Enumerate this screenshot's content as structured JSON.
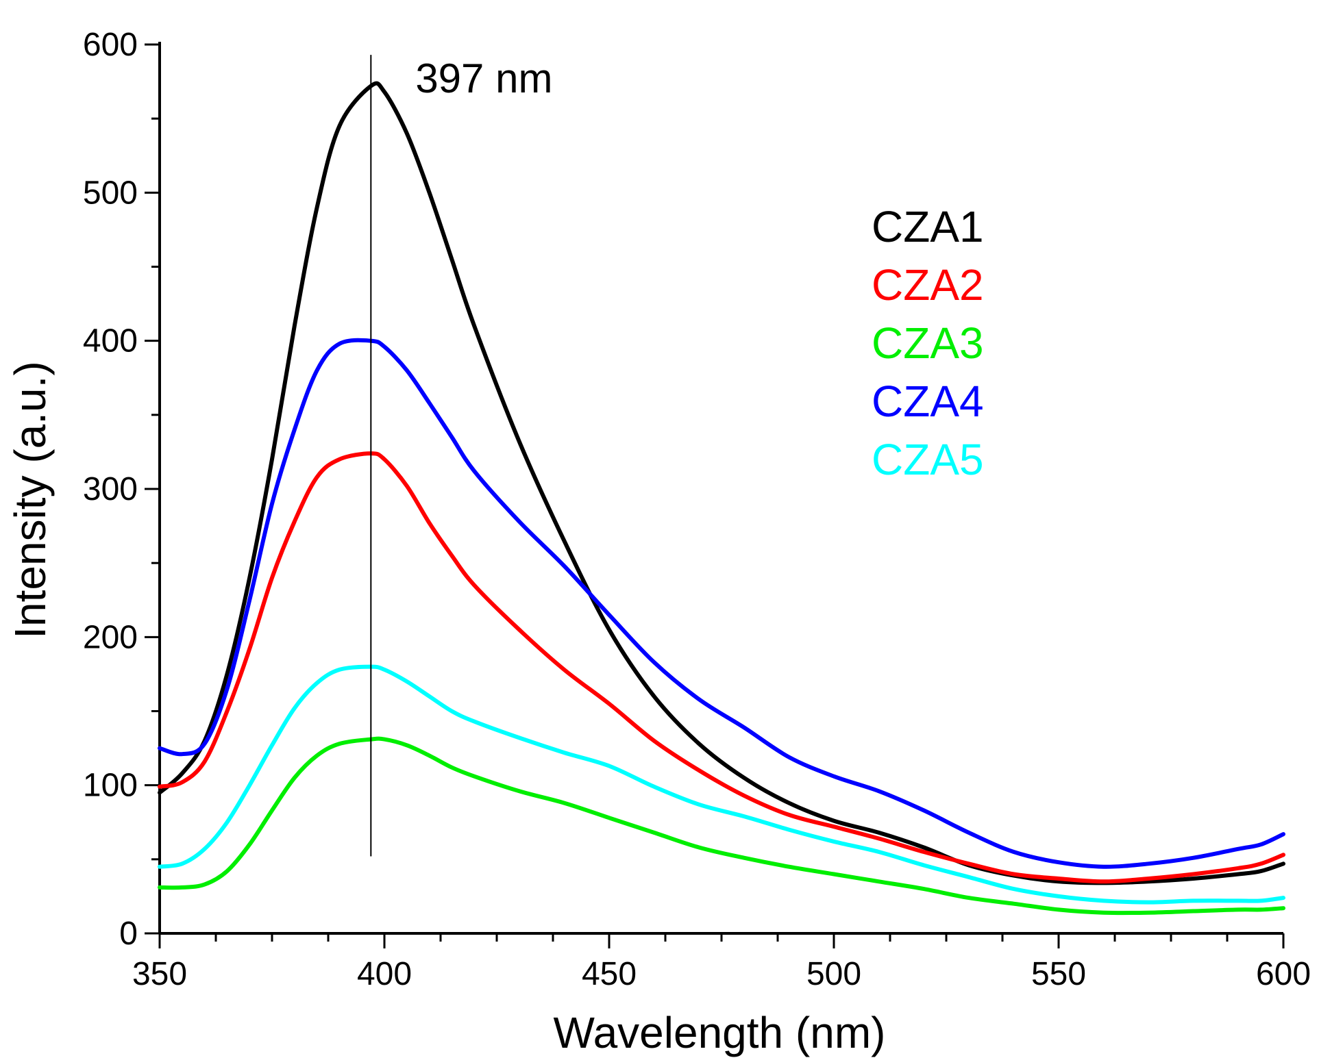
{
  "chart_data": {
    "type": "line",
    "title": "",
    "xlabel": "Wavelength (nm)",
    "ylabel": "Intensity (a.u.)",
    "xlim": [
      350,
      600
    ],
    "ylim": [
      0,
      600
    ],
    "x_ticks": [
      350,
      400,
      450,
      500,
      550,
      600
    ],
    "y_ticks": [
      0,
      100,
      200,
      300,
      400,
      500,
      600
    ],
    "x_tick_labels": [
      "350",
      "400",
      "450",
      "500",
      "550",
      "600"
    ],
    "y_tick_labels": [
      "0",
      "100",
      "200",
      "300",
      "400",
      "500",
      "600"
    ],
    "grid": false,
    "legend_position": "top-right",
    "annotation": {
      "text": "397 nm",
      "x": 397,
      "y_from": 52,
      "y_to": 593
    },
    "x": [
      350,
      355,
      360,
      365,
      370,
      375,
      380,
      385,
      390,
      397,
      400,
      405,
      410,
      415,
      420,
      430,
      440,
      450,
      460,
      470,
      480,
      490,
      500,
      510,
      520,
      530,
      540,
      550,
      560,
      570,
      580,
      590,
      595,
      600
    ],
    "series": [
      {
        "name": "CZA1",
        "color": "#000000",
        "values": [
          95,
          108,
          130,
          175,
          240,
          320,
          410,
          490,
          545,
          572,
          568,
          540,
          500,
          455,
          410,
          332,
          265,
          205,
          160,
          128,
          105,
          88,
          76,
          68,
          58,
          46,
          39,
          35,
          34,
          35,
          37,
          40,
          42,
          47
        ]
      },
      {
        "name": "CZA2",
        "color": "#ff0000",
        "values": [
          99,
          102,
          116,
          150,
          192,
          240,
          278,
          308,
          320,
          324,
          320,
          302,
          277,
          255,
          235,
          205,
          178,
          155,
          130,
          110,
          93,
          80,
          72,
          64,
          55,
          47,
          40,
          37,
          35,
          37,
          40,
          44,
          47,
          53
        ]
      },
      {
        "name": "CZA3",
        "color": "#00ee00",
        "values": [
          31,
          31,
          33,
          42,
          60,
          83,
          105,
          120,
          128,
          131,
          131,
          127,
          120,
          112,
          106,
          96,
          88,
          78,
          68,
          58,
          51,
          45,
          40,
          35,
          30,
          24,
          20,
          16,
          14,
          14,
          15,
          16,
          16,
          17
        ]
      },
      {
        "name": "CZA4",
        "color": "#0000ff",
        "values": [
          125,
          121,
          128,
          165,
          225,
          290,
          340,
          380,
          398,
          400,
          396,
          380,
          358,
          335,
          312,
          278,
          248,
          215,
          183,
          158,
          139,
          119,
          106,
          96,
          83,
          68,
          55,
          48,
          45,
          47,
          51,
          57,
          60,
          67
        ]
      },
      {
        "name": "CZA5",
        "color": "#00ffff",
        "values": [
          45,
          47,
          57,
          75,
          100,
          127,
          152,
          169,
          178,
          180,
          178,
          170,
          160,
          150,
          143,
          132,
          122,
          113,
          99,
          87,
          79,
          70,
          62,
          55,
          46,
          38,
          30,
          25,
          22,
          21,
          22,
          22,
          22,
          24
        ]
      }
    ]
  }
}
